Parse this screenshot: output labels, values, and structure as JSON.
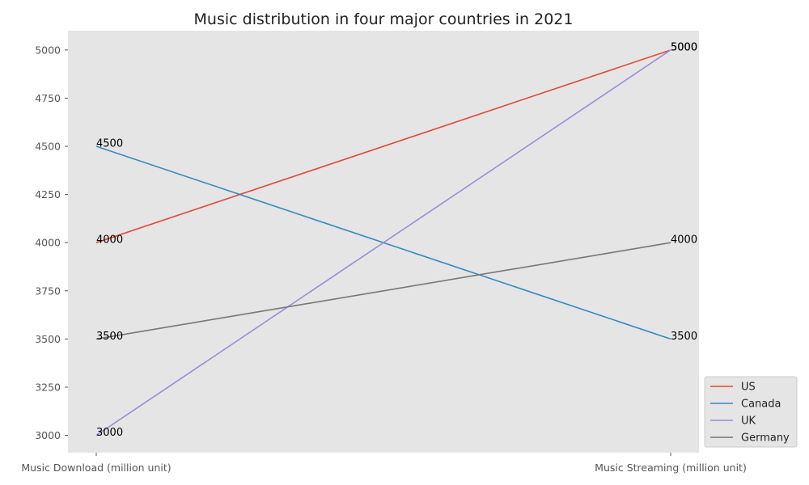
{
  "chart_data": {
    "type": "line",
    "title": "Music distribution in four major countries in 2021",
    "categories": [
      "Music Download (million unit)",
      "Music Streaming (million unit)"
    ],
    "series": [
      {
        "name": "US",
        "values": [
          4000,
          5000
        ],
        "color": "#E24A33"
      },
      {
        "name": "Canada",
        "values": [
          4500,
          3500
        ],
        "color": "#348ABD"
      },
      {
        "name": "UK",
        "values": [
          3000,
          5000
        ],
        "color": "#988ED5"
      },
      {
        "name": "Germany",
        "values": [
          3500,
          4000
        ],
        "color": "#777777"
      }
    ],
    "yticks": [
      3000,
      3250,
      3500,
      3750,
      4000,
      4250,
      4500,
      4750,
      5000
    ],
    "ylim": [
      2910,
      5100
    ],
    "grid": false,
    "legend_position": "lower-right-outside",
    "background_color": "#E5E5E5"
  }
}
